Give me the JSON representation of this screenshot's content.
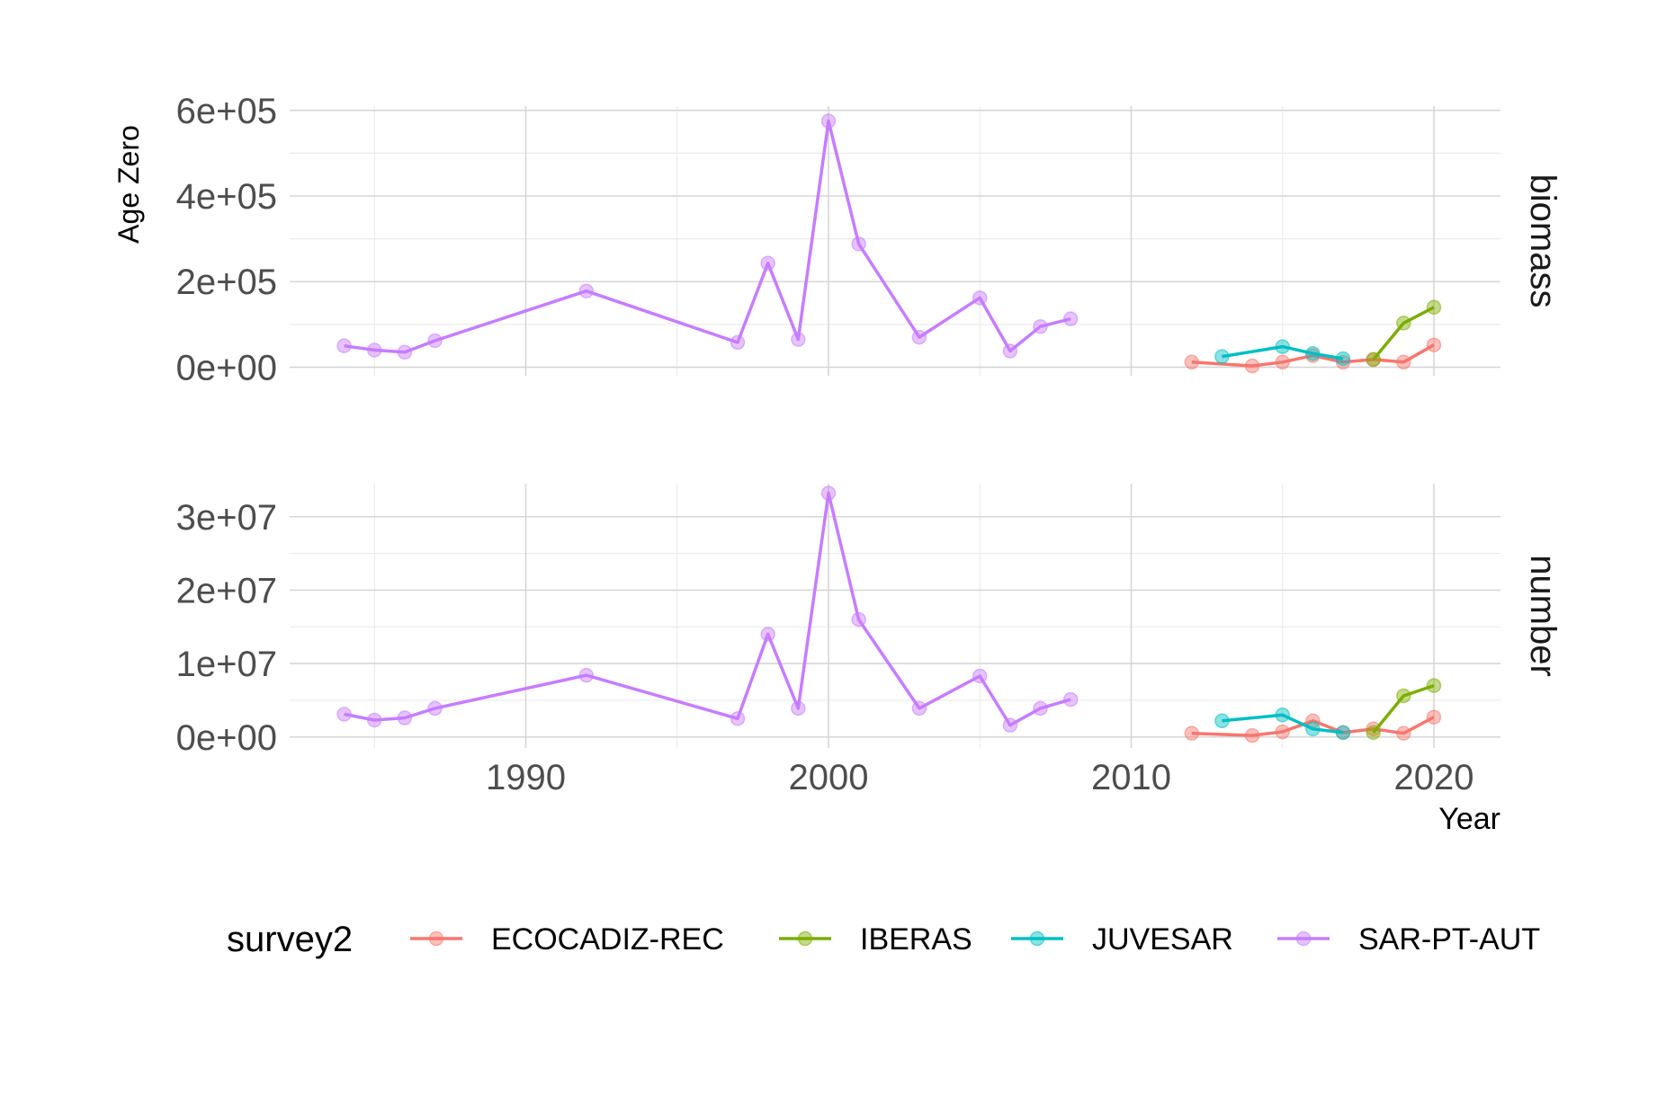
{
  "chart_data": {
    "type": "line",
    "xlabel": "Year",
    "ylabel": "Age Zero",
    "xlim": [
      1982.2,
      2022.2
    ],
    "x_ticks": [
      1990,
      2000,
      2010,
      2020
    ],
    "x_tick_labels": [
      "1990",
      "2000",
      "2010",
      "2020"
    ],
    "grid": true,
    "legend": {
      "title": "survey2",
      "placement": "bottom",
      "entries": [
        "ECOCADIZ-REC",
        "IBERAS",
        "JUVESAR",
        "SAR-PT-AUT"
      ]
    },
    "colors": {
      "ECOCADIZ-REC": "#F8766D",
      "IBERAS": "#7CAE00",
      "JUVESAR": "#00BFC4",
      "SAR-PT-AUT": "#C77CFF"
    },
    "panels": [
      {
        "strip": "biomass",
        "ylim": [
          -20000,
          610000
        ],
        "y_ticks": [
          0,
          200000,
          400000,
          600000
        ],
        "y_tick_labels": [
          "0e+00",
          "2e+05",
          "4e+05",
          "6e+05"
        ],
        "series": [
          {
            "name": "SAR-PT-AUT",
            "x": [
              1984,
              1985,
              1986,
              1987,
              1992,
              1997,
              1998,
              1999,
              2000,
              2001,
              2003,
              2005,
              2006,
              2007,
              2008
            ],
            "y": [
              50000,
              40000,
              35000,
              62000,
              178000,
              58000,
              243000,
              65000,
              575000,
              288000,
              70000,
              162000,
              38000,
              95000,
              113000
            ]
          },
          {
            "name": "ECOCADIZ-REC",
            "x": [
              2012,
              2014,
              2015,
              2016,
              2017,
              2018,
              2019,
              2020
            ],
            "y": [
              12000,
              3000,
              12000,
              27000,
              12000,
              18000,
              12000,
              52000
            ]
          },
          {
            "name": "JUVESAR",
            "x": [
              2013,
              2015,
              2016,
              2017
            ],
            "y": [
              25000,
              48000,
              32000,
              20000
            ]
          },
          {
            "name": "IBERAS",
            "x": [
              2018,
              2019,
              2020
            ],
            "y": [
              18000,
              103000,
              140000
            ]
          }
        ]
      },
      {
        "strip": "number",
        "ylim": [
          -1500000,
          34500000
        ],
        "y_ticks": [
          0,
          10000000,
          20000000,
          30000000
        ],
        "y_tick_labels": [
          "0e+00",
          "1e+07",
          "2e+07",
          "3e+07"
        ],
        "series": [
          {
            "name": "SAR-PT-AUT",
            "x": [
              1984,
              1985,
              1986,
              1987,
              1992,
              1997,
              1998,
              1999,
              2000,
              2001,
              2003,
              2005,
              2006,
              2007,
              2008
            ],
            "y": [
              3100000,
              2300000,
              2600000,
              3900000,
              8400000,
              2500000,
              14000000,
              3900000,
              33200000,
              16000000,
              3900000,
              8300000,
              1600000,
              3900000,
              5100000
            ]
          },
          {
            "name": "ECOCADIZ-REC",
            "x": [
              2012,
              2014,
              2015,
              2016,
              2017,
              2018,
              2019,
              2020
            ],
            "y": [
              500000,
              200000,
              700000,
              2200000,
              600000,
              1100000,
              500000,
              2700000
            ]
          },
          {
            "name": "JUVESAR",
            "x": [
              2013,
              2015,
              2016,
              2017
            ],
            "y": [
              2200000,
              3000000,
              1100000,
              600000
            ]
          },
          {
            "name": "IBERAS",
            "x": [
              2018,
              2019,
              2020
            ],
            "y": [
              600000,
              5600000,
              7000000
            ]
          }
        ]
      }
    ]
  }
}
